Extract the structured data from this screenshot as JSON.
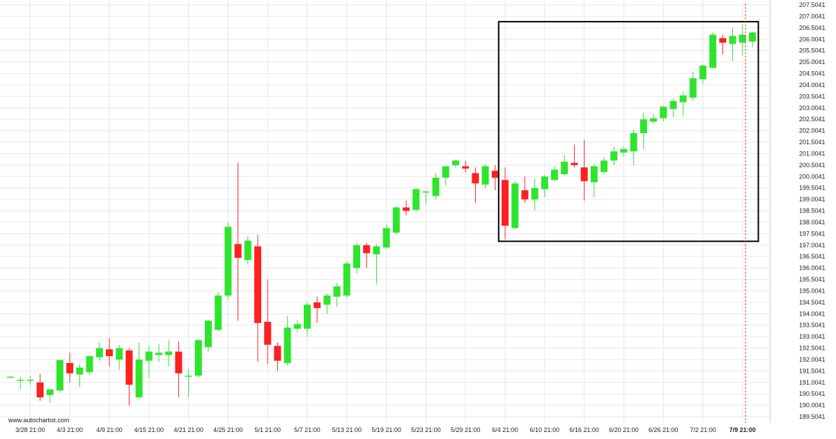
{
  "watermark": "www.autochartist.com",
  "colors": {
    "up": "#2ee52e",
    "down": "#ff2020",
    "pattern_box": "#000000",
    "grid": "#e6e6e6",
    "current_time_line": "#d04040"
  },
  "chart_data": {
    "type": "candlestick",
    "grid": true,
    "ylim": [
      189.2,
      207.7
    ],
    "y_ticks": [
      "189.5041",
      "190.0041",
      "190.5041",
      "191.0041",
      "191.5041",
      "192.0041",
      "192.5041",
      "193.0041",
      "193.5041",
      "194.0041",
      "194.5041",
      "195.0041",
      "195.5041",
      "196.0041",
      "196.5041",
      "197.0041",
      "197.5041",
      "198.0041",
      "198.5041",
      "199.0041",
      "199.5041",
      "200.0041",
      "200.5041",
      "201.0041",
      "201.5041",
      "202.0041",
      "202.5041",
      "203.0041",
      "203.5041",
      "204.0041",
      "204.5041",
      "205.0041",
      "205.5041",
      "206.0041",
      "206.5041",
      "207.0041",
      "207.5041"
    ],
    "x_ticks": [
      {
        "label": "3/28 21:00",
        "bar": 2
      },
      {
        "label": "4/3 21:00",
        "bar": 6
      },
      {
        "label": "4/9 21:00",
        "bar": 10
      },
      {
        "label": "4/15 21:00",
        "bar": 14
      },
      {
        "label": "4/21 21:00",
        "bar": 18
      },
      {
        "label": "4/25 21:00",
        "bar": 22
      },
      {
        "label": "5/1 21:00",
        "bar": 26
      },
      {
        "label": "5/7 21:00",
        "bar": 30
      },
      {
        "label": "5/13 21:00",
        "bar": 34
      },
      {
        "label": "5/19 21:00",
        "bar": 38
      },
      {
        "label": "5/23 21:00",
        "bar": 42
      },
      {
        "label": "5/29 21:00",
        "bar": 46
      },
      {
        "label": "6/4 21:00",
        "bar": 50
      },
      {
        "label": "6/10 21:00",
        "bar": 54
      },
      {
        "label": "6/16 21:00",
        "bar": 58
      },
      {
        "label": "6/20 21:00",
        "bar": 62
      },
      {
        "label": "6/26 21:00",
        "bar": 66
      },
      {
        "label": "7/2 21:00",
        "bar": 70
      },
      {
        "label": "7/9 21:00",
        "bar": 74,
        "bold": true
      }
    ],
    "pattern_box": {
      "bar_start": 49.35,
      "bar_end": 75.6,
      "y_low": 197.17,
      "y_high": 206.77
    },
    "current_bar": 74.3,
    "candles": [
      {
        "o": 191.25,
        "h": 191.28,
        "l": 191.22,
        "c": 191.25
      },
      {
        "o": 191.08,
        "h": 191.25,
        "l": 190.7,
        "c": 191.12
      },
      {
        "o": 191.1,
        "h": 191.3,
        "l": 190.9,
        "c": 191.12
      },
      {
        "o": 191.0,
        "h": 191.38,
        "l": 190.2,
        "c": 190.35
      },
      {
        "o": 190.45,
        "h": 190.7,
        "l": 190.1,
        "c": 190.7
      },
      {
        "o": 190.65,
        "h": 192.0,
        "l": 190.55,
        "c": 191.98
      },
      {
        "o": 191.85,
        "h": 192.3,
        "l": 191.0,
        "c": 191.4
      },
      {
        "o": 191.35,
        "h": 191.8,
        "l": 190.8,
        "c": 191.65
      },
      {
        "o": 191.45,
        "h": 192.2,
        "l": 191.35,
        "c": 192.15
      },
      {
        "o": 192.1,
        "h": 192.75,
        "l": 191.95,
        "c": 192.5
      },
      {
        "o": 192.45,
        "h": 192.95,
        "l": 191.7,
        "c": 192.15
      },
      {
        "o": 192.0,
        "h": 192.65,
        "l": 191.55,
        "c": 192.5
      },
      {
        "o": 192.4,
        "h": 192.5,
        "l": 190.0,
        "c": 190.9
      },
      {
        "o": 190.35,
        "h": 192.75,
        "l": 190.3,
        "c": 192.0
      },
      {
        "o": 191.95,
        "h": 192.6,
        "l": 191.2,
        "c": 192.35
      },
      {
        "o": 192.2,
        "h": 192.7,
        "l": 191.9,
        "c": 192.3
      },
      {
        "o": 192.2,
        "h": 192.85,
        "l": 191.7,
        "c": 192.35
      },
      {
        "o": 192.35,
        "h": 192.8,
        "l": 190.35,
        "c": 191.4
      },
      {
        "o": 191.28,
        "h": 191.6,
        "l": 190.35,
        "c": 191.3
      },
      {
        "o": 191.3,
        "h": 192.9,
        "l": 191.2,
        "c": 192.85
      },
      {
        "o": 192.55,
        "h": 193.75,
        "l": 192.35,
        "c": 193.7
      },
      {
        "o": 193.3,
        "h": 194.95,
        "l": 193.25,
        "c": 194.8
      },
      {
        "o": 194.8,
        "h": 198.0,
        "l": 194.6,
        "c": 197.8
      },
      {
        "o": 197.05,
        "h": 200.6,
        "l": 193.7,
        "c": 196.45
      },
      {
        "o": 196.35,
        "h": 197.4,
        "l": 196.15,
        "c": 197.2
      },
      {
        "o": 196.95,
        "h": 197.45,
        "l": 191.9,
        "c": 193.6
      },
      {
        "o": 193.65,
        "h": 195.5,
        "l": 191.8,
        "c": 192.65
      },
      {
        "o": 192.6,
        "h": 192.75,
        "l": 191.5,
        "c": 191.95
      },
      {
        "o": 191.85,
        "h": 193.9,
        "l": 191.75,
        "c": 193.4
      },
      {
        "o": 193.35,
        "h": 193.75,
        "l": 193.2,
        "c": 193.55
      },
      {
        "o": 193.35,
        "h": 194.5,
        "l": 193.0,
        "c": 194.4
      },
      {
        "o": 194.5,
        "h": 194.75,
        "l": 193.6,
        "c": 194.25
      },
      {
        "o": 194.4,
        "h": 194.9,
        "l": 194.0,
        "c": 194.8
      },
      {
        "o": 194.75,
        "h": 195.35,
        "l": 194.3,
        "c": 195.2
      },
      {
        "o": 194.8,
        "h": 196.3,
        "l": 194.7,
        "c": 196.2
      },
      {
        "o": 196.0,
        "h": 197.1,
        "l": 195.75,
        "c": 197.0
      },
      {
        "o": 197.0,
        "h": 197.1,
        "l": 196.0,
        "c": 196.65
      },
      {
        "o": 196.6,
        "h": 197.05,
        "l": 195.3,
        "c": 196.95
      },
      {
        "o": 196.9,
        "h": 197.9,
        "l": 196.85,
        "c": 197.75
      },
      {
        "o": 197.55,
        "h": 198.7,
        "l": 197.45,
        "c": 198.65
      },
      {
        "o": 198.65,
        "h": 198.95,
        "l": 198.3,
        "c": 198.5
      },
      {
        "o": 198.55,
        "h": 199.5,
        "l": 198.45,
        "c": 199.45
      },
      {
        "o": 199.3,
        "h": 199.4,
        "l": 198.8,
        "c": 199.35
      },
      {
        "o": 199.15,
        "h": 200.15,
        "l": 199.0,
        "c": 199.95
      },
      {
        "o": 199.95,
        "h": 200.45,
        "l": 199.6,
        "c": 200.45
      },
      {
        "o": 200.5,
        "h": 200.75,
        "l": 200.4,
        "c": 200.7
      },
      {
        "o": 200.45,
        "h": 200.7,
        "l": 200.2,
        "c": 200.35
      },
      {
        "o": 200.15,
        "h": 200.4,
        "l": 198.85,
        "c": 199.7
      },
      {
        "o": 199.65,
        "h": 200.55,
        "l": 199.5,
        "c": 200.45
      },
      {
        "o": 200.25,
        "h": 200.5,
        "l": 199.4,
        "c": 199.95
      },
      {
        "o": 199.85,
        "h": 200.4,
        "l": 197.25,
        "c": 197.85
      },
      {
        "o": 197.75,
        "h": 199.8,
        "l": 197.7,
        "c": 199.7
      },
      {
        "o": 199.4,
        "h": 200.0,
        "l": 198.85,
        "c": 199.0
      },
      {
        "o": 199.0,
        "h": 199.9,
        "l": 198.5,
        "c": 199.5
      },
      {
        "o": 199.45,
        "h": 200.05,
        "l": 199.1,
        "c": 200.0
      },
      {
        "o": 199.85,
        "h": 200.45,
        "l": 199.8,
        "c": 200.3
      },
      {
        "o": 200.1,
        "h": 200.95,
        "l": 200.05,
        "c": 200.65
      },
      {
        "o": 200.6,
        "h": 201.4,
        "l": 200.4,
        "c": 200.5
      },
      {
        "o": 200.4,
        "h": 201.6,
        "l": 198.95,
        "c": 199.8
      },
      {
        "o": 199.75,
        "h": 200.55,
        "l": 199.1,
        "c": 200.45
      },
      {
        "o": 200.2,
        "h": 200.85,
        "l": 200.1,
        "c": 200.7
      },
      {
        "o": 200.7,
        "h": 201.3,
        "l": 200.5,
        "c": 201.1
      },
      {
        "o": 201.05,
        "h": 201.3,
        "l": 200.9,
        "c": 201.2
      },
      {
        "o": 201.1,
        "h": 202.05,
        "l": 200.5,
        "c": 201.9
      },
      {
        "o": 201.9,
        "h": 202.8,
        "l": 201.2,
        "c": 202.5
      },
      {
        "o": 202.4,
        "h": 202.75,
        "l": 202.3,
        "c": 202.55
      },
      {
        "o": 202.55,
        "h": 203.1,
        "l": 202.4,
        "c": 203.05
      },
      {
        "o": 202.95,
        "h": 203.4,
        "l": 202.6,
        "c": 203.3
      },
      {
        "o": 203.25,
        "h": 203.7,
        "l": 202.65,
        "c": 203.55
      },
      {
        "o": 203.45,
        "h": 204.6,
        "l": 203.3,
        "c": 204.3
      },
      {
        "o": 204.25,
        "h": 204.9,
        "l": 204.05,
        "c": 204.85
      },
      {
        "o": 204.75,
        "h": 206.3,
        "l": 204.75,
        "c": 206.2
      },
      {
        "o": 206.05,
        "h": 206.2,
        "l": 205.35,
        "c": 205.85
      },
      {
        "o": 205.8,
        "h": 206.5,
        "l": 205.05,
        "c": 206.15
      },
      {
        "o": 205.85,
        "h": 206.65,
        "l": 205.3,
        "c": 206.2
      },
      {
        "o": 205.9,
        "h": 206.35,
        "l": 205.65,
        "c": 206.3
      }
    ]
  }
}
